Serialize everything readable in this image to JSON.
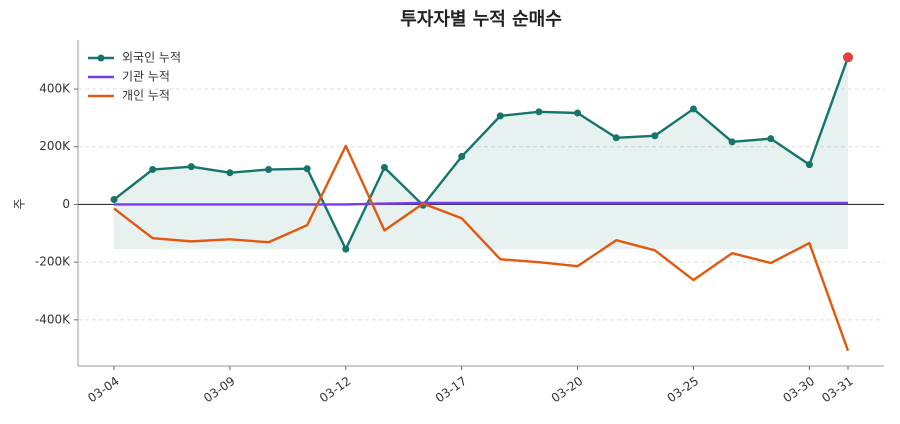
{
  "chart_data": {
    "type": "line",
    "title": "투자자별 누적 순매수",
    "ylabel": "주",
    "categories": [
      "03-04",
      null,
      null,
      "03-09",
      null,
      null,
      "03-12",
      null,
      null,
      "03-17",
      null,
      null,
      "03-20",
      null,
      null,
      "03-25",
      null,
      null,
      "03-30",
      "03-31"
    ],
    "series": [
      {
        "name": "외국인 누적",
        "color": "#16756b",
        "markers": true,
        "fill": true,
        "values": [
          17000,
          121000,
          131000,
          110000,
          121000,
          124000,
          -155000,
          128000,
          -3000,
          166000,
          307000,
          321000,
          317000,
          231000,
          238000,
          331000,
          217000,
          228000,
          138000,
          510000
        ]
      },
      {
        "name": "기관 누적",
        "color": "#7c3aed",
        "values": [
          0,
          0,
          0,
          0,
          0,
          0,
          0,
          3000,
          5000,
          5000,
          5000,
          5000,
          5000,
          5000,
          5000,
          5000,
          5000,
          5000,
          5000,
          5000
        ]
      },
      {
        "name": "개인 누적",
        "color": "#e0590f",
        "values": [
          -14000,
          -117000,
          -128000,
          -121000,
          -131000,
          -72000,
          203000,
          -90000,
          3000,
          -48000,
          -190000,
          -200000,
          -214000,
          -124000,
          -159000,
          -262000,
          -169000,
          -203000,
          -134000,
          -507000
        ]
      }
    ],
    "highlight_last_color": "#e53e3e",
    "ylim": [
      -560000,
      570000
    ],
    "yticks": [
      {
        "value": -400000,
        "label": "-400K"
      },
      {
        "value": -200000,
        "label": "-200K"
      },
      0,
      {
        "value": 200000,
        "label": "200K"
      },
      {
        "value": 400000,
        "label": "400K"
      }
    ],
    "grid": true,
    "legend": "upper-left"
  }
}
